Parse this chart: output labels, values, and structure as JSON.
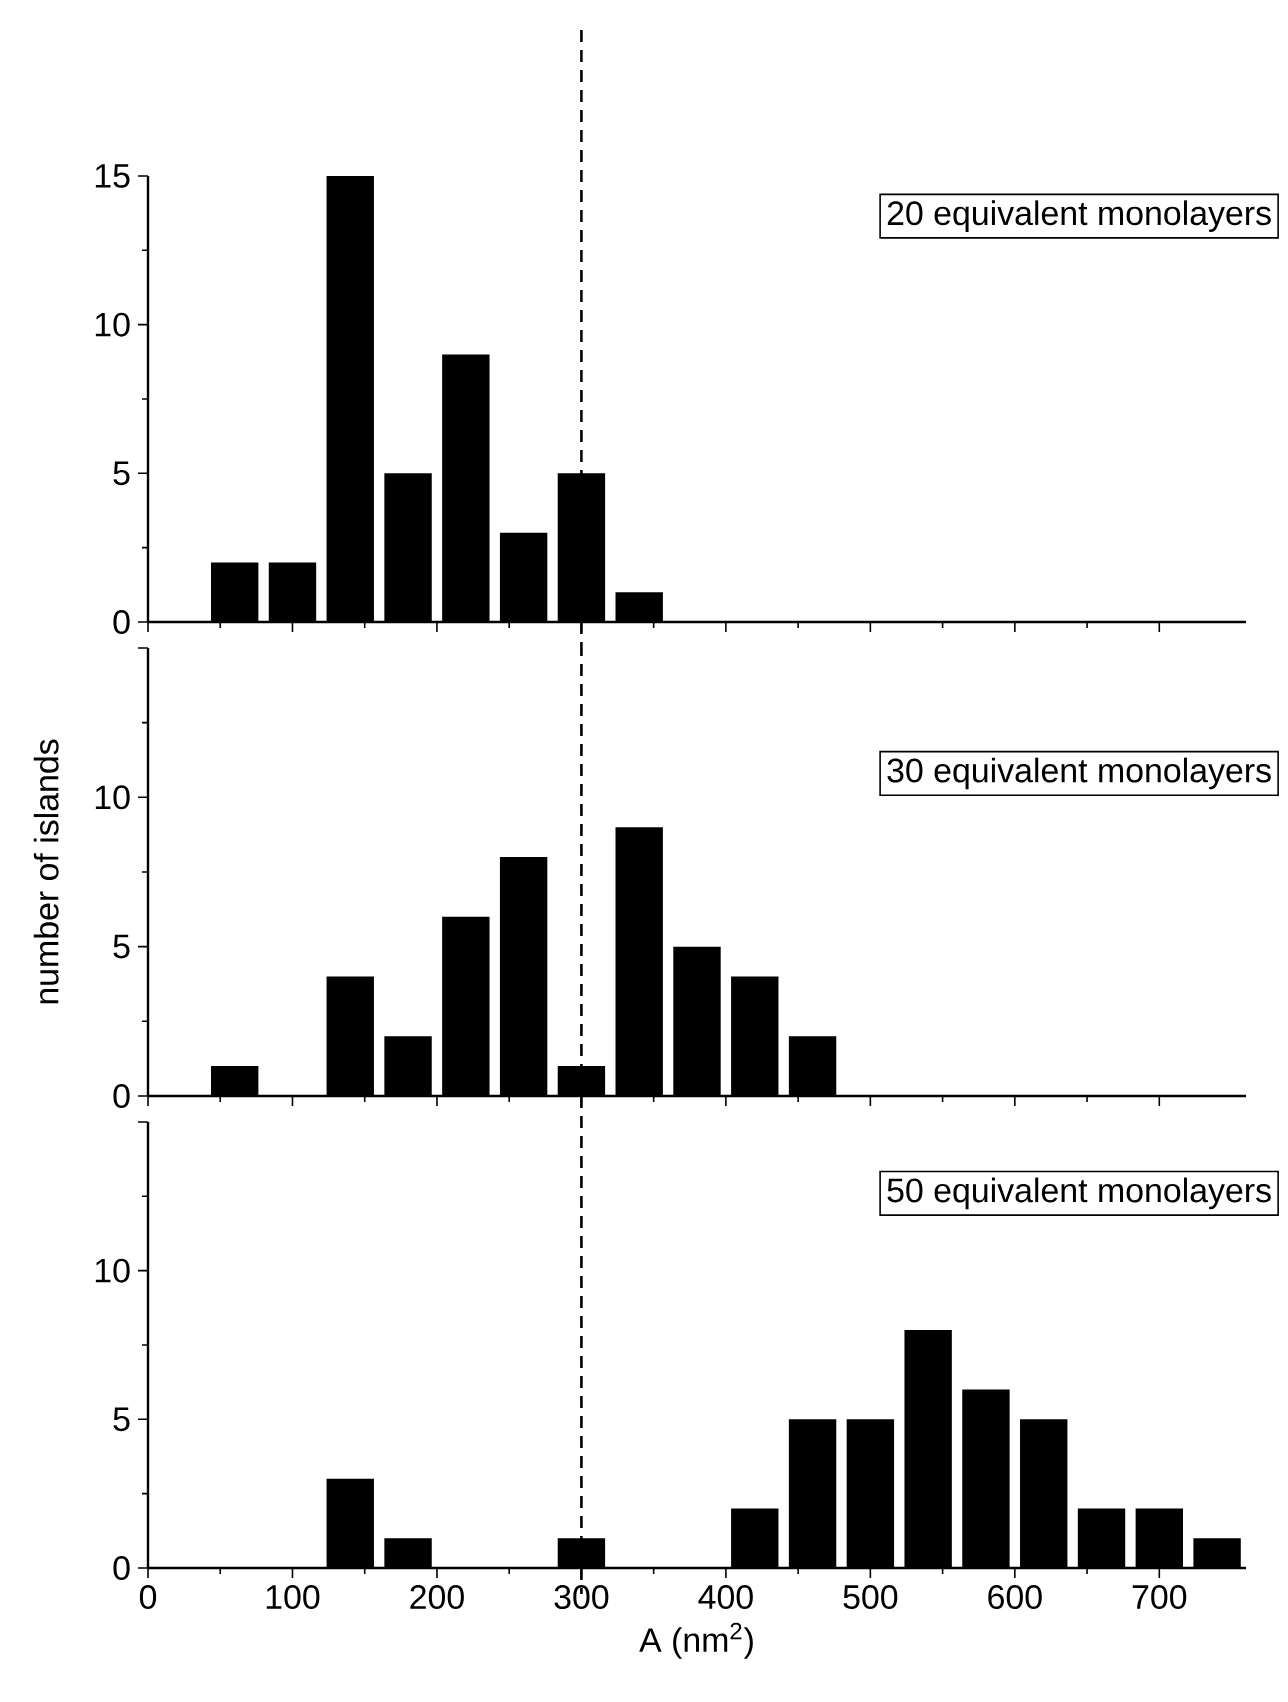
{
  "chart_data": [
    {
      "type": "histogram",
      "color": "#000000",
      "bins": [
        40,
        80,
        120,
        160,
        200,
        240,
        280,
        320,
        360,
        400,
        440,
        480,
        520,
        560,
        600,
        640,
        680,
        720,
        760
      ],
      "values": [
        2,
        2,
        15,
        5,
        9,
        3,
        5,
        1,
        0,
        0,
        0,
        0,
        0,
        0,
        0,
        0,
        0,
        0
      ],
      "xlim": [
        0,
        760
      ],
      "xticks": [
        0,
        100,
        200,
        300,
        400,
        500,
        600,
        700
      ],
      "ylim": [
        0,
        15
      ],
      "yticks": [
        0,
        5,
        10,
        15
      ],
      "tick_labels": "y",
      "ref_lines": [
        {
          "axis": "x",
          "value": 300,
          "line_style": "dashed"
        }
      ],
      "annotations": [
        "20 equivalent monolayers"
      ]
    },
    {
      "type": "histogram",
      "color": "#000000",
      "bins": [
        40,
        80,
        120,
        160,
        200,
        240,
        280,
        320,
        360,
        400,
        440,
        480,
        520,
        560,
        600,
        640,
        680,
        720,
        760
      ],
      "values": [
        1,
        0,
        4,
        2,
        6,
        8,
        1,
        9,
        5,
        4,
        2,
        0,
        0,
        0,
        0,
        0,
        0,
        0
      ],
      "xlim": [
        0,
        760
      ],
      "xticks": [
        0,
        100,
        200,
        300,
        400,
        500,
        600,
        700
      ],
      "ylim": [
        0,
        15
      ],
      "yticks": [
        0,
        5,
        10,
        {
          "value": 15,
          "label": null
        }
      ],
      "tick_labels": "y",
      "ylabel": "number of islands",
      "ref_lines": [
        {
          "axis": "x",
          "value": 300,
          "line_style": "dashed"
        }
      ],
      "annotations": [
        "30 equivalent monolayers"
      ]
    },
    {
      "type": "histogram",
      "color": "#000000",
      "bins": [
        40,
        80,
        120,
        160,
        200,
        240,
        280,
        320,
        360,
        400,
        440,
        480,
        520,
        560,
        600,
        640,
        680,
        720,
        760
      ],
      "values": [
        0,
        0,
        3,
        1,
        0,
        0,
        1,
        0,
        0,
        2,
        5,
        5,
        8,
        6,
        5,
        2,
        2,
        1
      ],
      "xlim": [
        0,
        760
      ],
      "xticks": [
        0,
        100,
        200,
        300,
        400,
        500,
        600,
        700
      ],
      "ylim": [
        0,
        15
      ],
      "yticks": [
        0,
        5,
        10,
        {
          "value": 15,
          "label": null
        }
      ],
      "xlabel": "A (nm$^{2}$)",
      "ref_lines": [
        {
          "axis": "x",
          "value": 300,
          "line_style": "dashed"
        }
      ],
      "annotations": [
        "50 equivalent monolayers"
      ]
    }
  ]
}
